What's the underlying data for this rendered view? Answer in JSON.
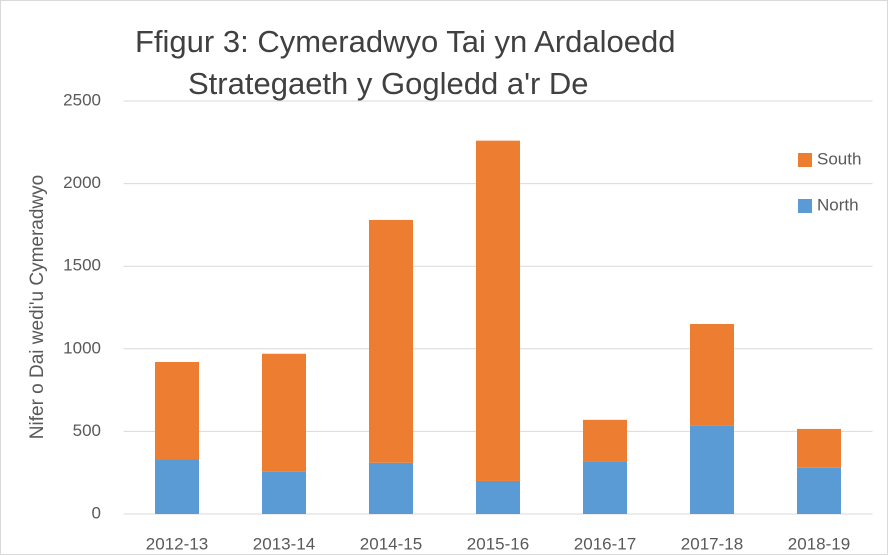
{
  "chart_data": {
    "type": "stacked_bar",
    "title": [
      "Ffigur 3: Cymeradwyo Tai yn Ardaloedd",
      "Strategaeth y Gogledd a'r De"
    ],
    "y_label": "Nifer o Dai wedi'u Cymeradwyo",
    "categories": [
      "2012-13",
      "2013-14",
      "2014-15",
      "2015-16",
      "2016-17",
      "2017-18",
      "2018-19"
    ],
    "series": [
      {
        "name": "North",
        "color": "#5b9bd5",
        "values": [
          330,
          255,
          310,
          200,
          315,
          535,
          280
        ]
      },
      {
        "name": "South",
        "color": "#ed7d31",
        "values": [
          590,
          715,
          1470,
          2060,
          255,
          615,
          235
        ]
      }
    ],
    "ylim": [
      0,
      2500
    ],
    "yticks": [
      0,
      500,
      1000,
      1500,
      2000,
      2500
    ],
    "grid": true,
    "legend": "right"
  }
}
